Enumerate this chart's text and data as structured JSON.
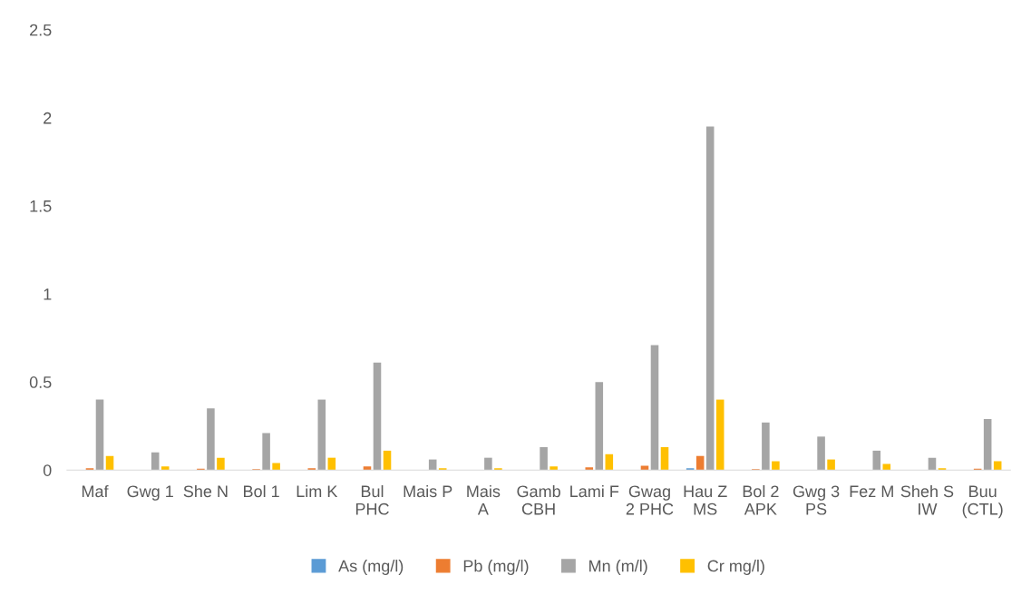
{
  "chart_data": {
    "type": "bar",
    "categories": [
      "Maf",
      "Gwg 1",
      "She N",
      "Bol 1",
      "Lim K",
      "Bul\nPHC",
      "Mais P",
      "Mais\nA",
      "Gamb\nCBH",
      "Lami F",
      "Gwag\n2 PHC",
      "Hau Z\nMS",
      "Bol 2\nAPK",
      "Gwg 3\nPS",
      "Fez M",
      "Sheh S\nIW",
      "Buu\n(CTL)"
    ],
    "series": [
      {
        "name": "As (mg/l)",
        "color": "#5b9bd5",
        "values": [
          0,
          0,
          0,
          0,
          0,
          0,
          0,
          0,
          0,
          0,
          0,
          0.01,
          0,
          0,
          0,
          0,
          0
        ]
      },
      {
        "name": "Pb (mg/l)",
        "color": "#ed7d31",
        "values": [
          0.01,
          0,
          0.008,
          0.005,
          0.01,
          0.02,
          0,
          0,
          0,
          0.015,
          0.025,
          0.08,
          0.005,
          0,
          0,
          0,
          0.008
        ]
      },
      {
        "name": "Mn (m/l)",
        "color": "#a5a5a5",
        "values": [
          0.4,
          0.1,
          0.35,
          0.21,
          0.4,
          0.61,
          0.06,
          0.07,
          0.13,
          0.5,
          0.71,
          1.95,
          0.27,
          0.19,
          0.11,
          0.07,
          0.29
        ]
      },
      {
        "name": "Cr mg/l)",
        "color": "#ffc000",
        "values": [
          0.08,
          0.02,
          0.07,
          0.04,
          0.07,
          0.11,
          0.01,
          0.01,
          0.02,
          0.09,
          0.13,
          0.4,
          0.05,
          0.06,
          0.035,
          0.01,
          0.05
        ]
      }
    ],
    "ylim": [
      0,
      2.5
    ],
    "yticks": [
      0,
      0.5,
      1,
      1.5,
      2,
      2.5
    ],
    "grid": false,
    "legend": "bottom"
  }
}
